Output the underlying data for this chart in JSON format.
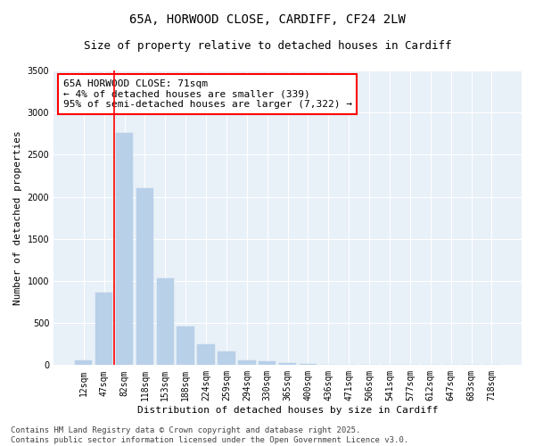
{
  "title_line1": "65A, HORWOOD CLOSE, CARDIFF, CF24 2LW",
  "title_line2": "Size of property relative to detached houses in Cardiff",
  "xlabel": "Distribution of detached houses by size in Cardiff",
  "ylabel": "Number of detached properties",
  "categories": [
    "12sqm",
    "47sqm",
    "82sqm",
    "118sqm",
    "153sqm",
    "188sqm",
    "224sqm",
    "259sqm",
    "294sqm",
    "330sqm",
    "365sqm",
    "400sqm",
    "436sqm",
    "471sqm",
    "506sqm",
    "541sqm",
    "577sqm",
    "612sqm",
    "647sqm",
    "683sqm",
    "718sqm"
  ],
  "values": [
    55,
    860,
    2760,
    2100,
    1030,
    455,
    250,
    160,
    60,
    45,
    20,
    15,
    5,
    2,
    1,
    0,
    0,
    0,
    0,
    0,
    0
  ],
  "bar_color": "#b8d0e8",
  "bar_edgecolor": "#b8d0e8",
  "vline_x": 1.5,
  "vline_color": "red",
  "annotation_text": "65A HORWOOD CLOSE: 71sqm\n← 4% of detached houses are smaller (339)\n95% of semi-detached houses are larger (7,322) →",
  "annotation_box_color": "white",
  "annotation_box_edgecolor": "red",
  "ylim": [
    0,
    3500
  ],
  "yticks": [
    0,
    500,
    1000,
    1500,
    2000,
    2500,
    3000,
    3500
  ],
  "background_color": "#e8f0f8",
  "grid_color": "white",
  "footer_line1": "Contains HM Land Registry data © Crown copyright and database right 2025.",
  "footer_line2": "Contains public sector information licensed under the Open Government Licence v3.0.",
  "title_fontsize": 10,
  "subtitle_fontsize": 9,
  "axis_label_fontsize": 8,
  "tick_fontsize": 7,
  "footer_fontsize": 6.5,
  "annotation_fontsize": 8
}
